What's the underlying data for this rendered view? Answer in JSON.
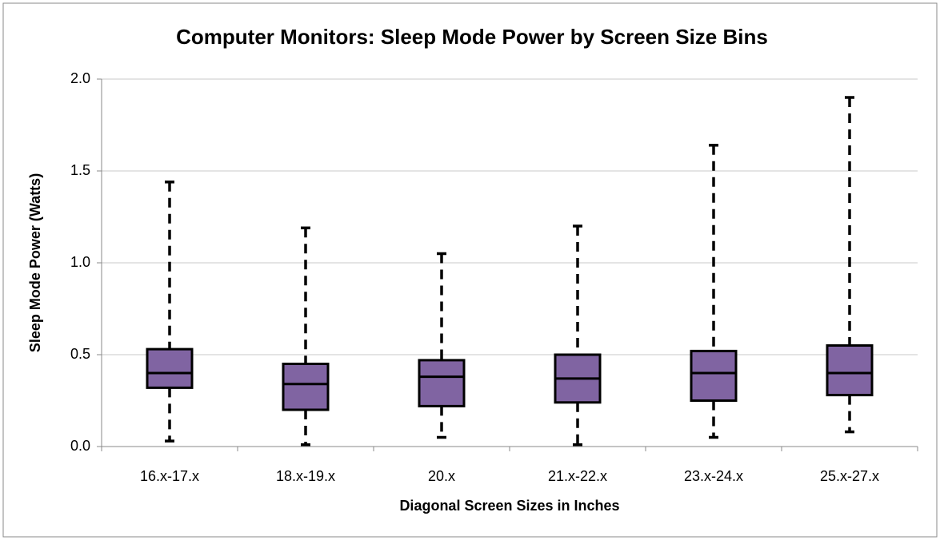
{
  "chart_data": {
    "type": "box",
    "title": "Computer Monitors: Sleep Mode Power by Screen Size Bins",
    "x_label": "Diagonal Screen Sizes in Inches",
    "y_label": "Sleep Mode Power (Watts)",
    "categories": [
      "16.x-17.x",
      "18.x-19.x",
      "20.x",
      "21.x-22.x",
      "23.x-24.x",
      "25.x-27.x"
    ],
    "boxes": [
      {
        "min": 0.03,
        "q1": 0.32,
        "median": 0.4,
        "q3": 0.53,
        "max": 1.44
      },
      {
        "min": 0.01,
        "q1": 0.2,
        "median": 0.34,
        "q3": 0.45,
        "max": 1.19
      },
      {
        "min": 0.05,
        "q1": 0.22,
        "median": 0.38,
        "q3": 0.47,
        "max": 1.05
      },
      {
        "min": 0.01,
        "q1": 0.24,
        "median": 0.37,
        "q3": 0.5,
        "max": 1.2
      },
      {
        "min": 0.05,
        "q1": 0.25,
        "median": 0.4,
        "q3": 0.52,
        "max": 1.64
      },
      {
        "min": 0.08,
        "q1": 0.28,
        "median": 0.4,
        "q3": 0.55,
        "max": 1.9
      }
    ],
    "color": "#8064a2",
    "ylim": [
      0,
      2
    ],
    "yticks": [
      {
        "value": 0,
        "label": "0.0"
      },
      0.5,
      {
        "value": 1,
        "label": "1.0"
      },
      1.5,
      {
        "value": 2,
        "label": "2.0"
      }
    ],
    "grid": true
  }
}
